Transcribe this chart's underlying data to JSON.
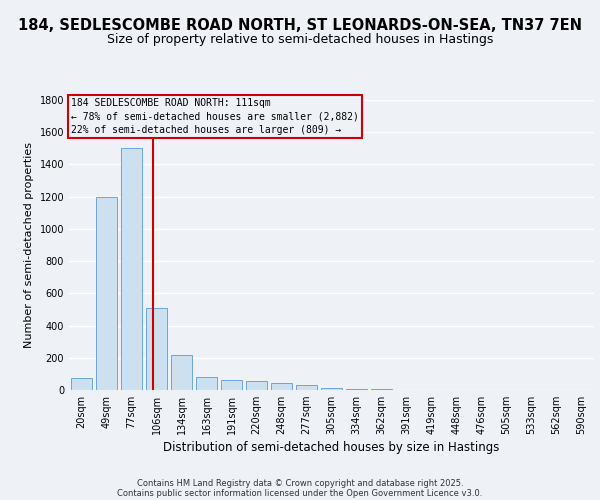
{
  "title_line1": "184, SEDLESCOMBE ROAD NORTH, ST LEONARDS-ON-SEA, TN37 7EN",
  "title_line2": "Size of property relative to semi-detached houses in Hastings",
  "xlabel": "Distribution of semi-detached houses by size in Hastings",
  "ylabel": "Number of semi-detached properties",
  "categories": [
    "20sqm",
    "49sqm",
    "77sqm",
    "106sqm",
    "134sqm",
    "163sqm",
    "191sqm",
    "220sqm",
    "248sqm",
    "277sqm",
    "305sqm",
    "334sqm",
    "362sqm",
    "391sqm",
    "419sqm",
    "448sqm",
    "476sqm",
    "505sqm",
    "533sqm",
    "562sqm",
    "590sqm"
  ],
  "values": [
    75,
    1200,
    1500,
    510,
    220,
    80,
    65,
    55,
    45,
    28,
    15,
    8,
    5,
    3,
    2,
    1,
    1,
    1,
    0,
    0,
    0
  ],
  "bar_color": "#cce0f0",
  "bar_edge_color": "#5b9bd5",
  "ylim": [
    0,
    1800
  ],
  "yticks": [
    0,
    200,
    400,
    600,
    800,
    1000,
    1200,
    1400,
    1600,
    1800
  ],
  "vline_x_index": 2.87,
  "vline_color": "#cc0000",
  "annotation_title": "184 SEDLESCOMBE ROAD NORTH: 111sqm",
  "annotation_line2": "← 78% of semi-detached houses are smaller (2,882)",
  "annotation_line3": "22% of semi-detached houses are larger (809) →",
  "annotation_box_color": "#cc0000",
  "footer_line1": "Contains HM Land Registry data © Crown copyright and database right 2025.",
  "footer_line2": "Contains public sector information licensed under the Open Government Licence v3.0.",
  "bg_color": "#eef2f7",
  "grid_color": "#ffffff",
  "title_fontsize": 10.5,
  "subtitle_fontsize": 9,
  "annot_fontsize": 7,
  "tick_fontsize": 7,
  "ylabel_fontsize": 8,
  "xlabel_fontsize": 8.5,
  "footer_fontsize": 6
}
